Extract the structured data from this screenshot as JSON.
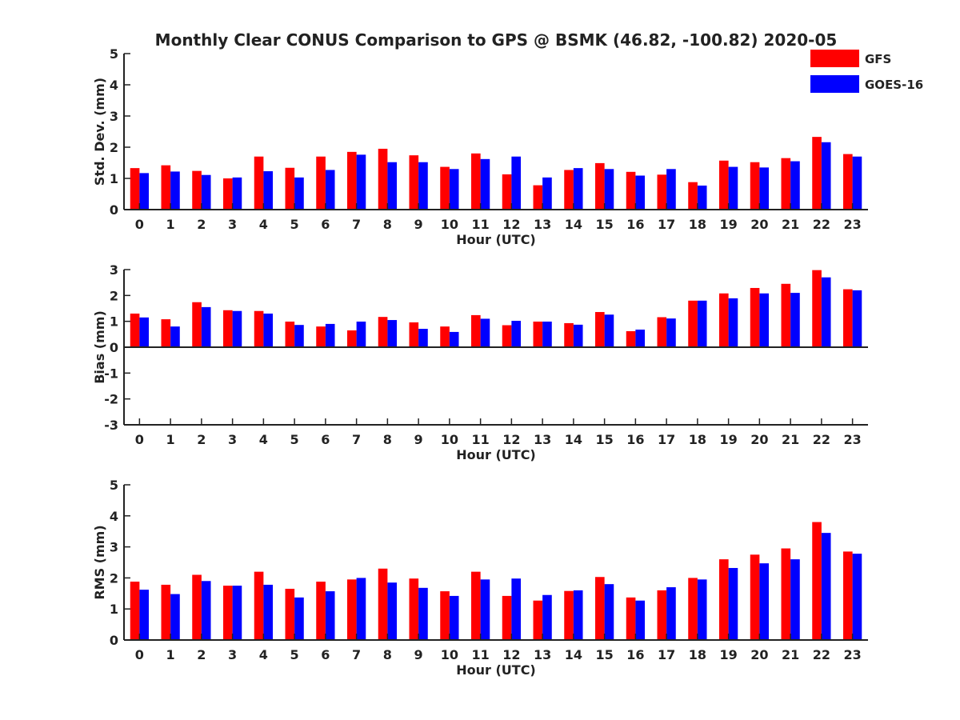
{
  "title": "Monthly Clear CONUS Comparison to GPS @ BSMK (46.82, -100.82) 2020-05",
  "colors": {
    "GFS": "#ff0000",
    "GOES-16": "#0000ff"
  },
  "legend": {
    "placement": "top-right",
    "entries": [
      "GFS",
      "GOES-16"
    ]
  },
  "chart_data": [
    {
      "type": "bar",
      "xlabel": "Hour (UTC)",
      "ylabel": "Std. Dev. (mm)",
      "ylim": [
        0,
        5
      ],
      "yticks": [
        "0",
        "1",
        "2",
        "3",
        "4",
        "5"
      ],
      "categories": [
        "0",
        "1",
        "2",
        "3",
        "4",
        "5",
        "6",
        "7",
        "8",
        "9",
        "10",
        "11",
        "12",
        "13",
        "14",
        "15",
        "16",
        "17",
        "18",
        "19",
        "20",
        "21",
        "22",
        "23"
      ],
      "series": [
        {
          "name": "GFS",
          "values": [
            1.33,
            1.42,
            1.24,
            1.0,
            1.7,
            1.34,
            1.7,
            1.85,
            1.95,
            1.74,
            1.37,
            1.8,
            1.13,
            0.78,
            1.27,
            1.49,
            1.21,
            1.12,
            0.88,
            1.57,
            1.52,
            1.65,
            2.33,
            1.78
          ]
        },
        {
          "name": "GOES-16",
          "values": [
            1.17,
            1.22,
            1.11,
            1.03,
            1.23,
            1.03,
            1.27,
            1.76,
            1.52,
            1.52,
            1.3,
            1.62,
            1.7,
            1.03,
            1.33,
            1.3,
            1.09,
            1.3,
            0.77,
            1.37,
            1.35,
            1.55,
            2.16,
            1.7
          ]
        }
      ]
    },
    {
      "type": "bar",
      "xlabel": "Hour (UTC)",
      "ylabel": "Bias (mm)",
      "ylim": [
        -3,
        3
      ],
      "yticks": [
        "-3",
        "-2",
        "-1",
        "0",
        "1",
        "2",
        "3"
      ],
      "categories": [
        "0",
        "1",
        "2",
        "3",
        "4",
        "5",
        "6",
        "7",
        "8",
        "9",
        "10",
        "11",
        "12",
        "13",
        "14",
        "15",
        "16",
        "17",
        "18",
        "19",
        "20",
        "21",
        "22",
        "23"
      ],
      "series": [
        {
          "name": "GFS",
          "values": [
            1.3,
            1.08,
            1.74,
            1.43,
            1.4,
            0.99,
            0.8,
            0.65,
            1.17,
            0.96,
            0.8,
            1.24,
            0.85,
            0.99,
            0.93,
            1.36,
            0.62,
            1.16,
            1.8,
            2.08,
            2.29,
            2.45,
            2.98,
            2.24
          ]
        },
        {
          "name": "GOES-16",
          "values": [
            1.15,
            0.8,
            1.55,
            1.4,
            1.3,
            0.86,
            0.9,
            0.99,
            1.05,
            0.71,
            0.59,
            1.1,
            1.02,
            0.99,
            0.87,
            1.26,
            0.68,
            1.11,
            1.8,
            1.89,
            2.08,
            2.1,
            2.7,
            2.2
          ]
        }
      ]
    },
    {
      "type": "bar",
      "xlabel": "Hour (UTC)",
      "ylabel": "RMS (mm)",
      "ylim": [
        0,
        5
      ],
      "yticks": [
        "0",
        "1",
        "2",
        "3",
        "4",
        "5"
      ],
      "categories": [
        "0",
        "1",
        "2",
        "3",
        "4",
        "5",
        "6",
        "7",
        "8",
        "9",
        "10",
        "11",
        "12",
        "13",
        "14",
        "15",
        "16",
        "17",
        "18",
        "19",
        "20",
        "21",
        "22",
        "23"
      ],
      "series": [
        {
          "name": "GFS",
          "values": [
            1.88,
            1.78,
            2.1,
            1.75,
            2.2,
            1.65,
            1.88,
            1.95,
            2.3,
            1.98,
            1.57,
            2.2,
            1.42,
            1.27,
            1.58,
            2.03,
            1.37,
            1.6,
            2.0,
            2.6,
            2.75,
            2.95,
            3.8,
            2.85
          ]
        },
        {
          "name": "GOES-16",
          "values": [
            1.62,
            1.48,
            1.9,
            1.75,
            1.78,
            1.37,
            1.57,
            2.0,
            1.85,
            1.68,
            1.42,
            1.95,
            1.98,
            1.45,
            1.6,
            1.8,
            1.27,
            1.7,
            1.95,
            2.32,
            2.47,
            2.6,
            3.45,
            2.78
          ]
        }
      ]
    }
  ]
}
